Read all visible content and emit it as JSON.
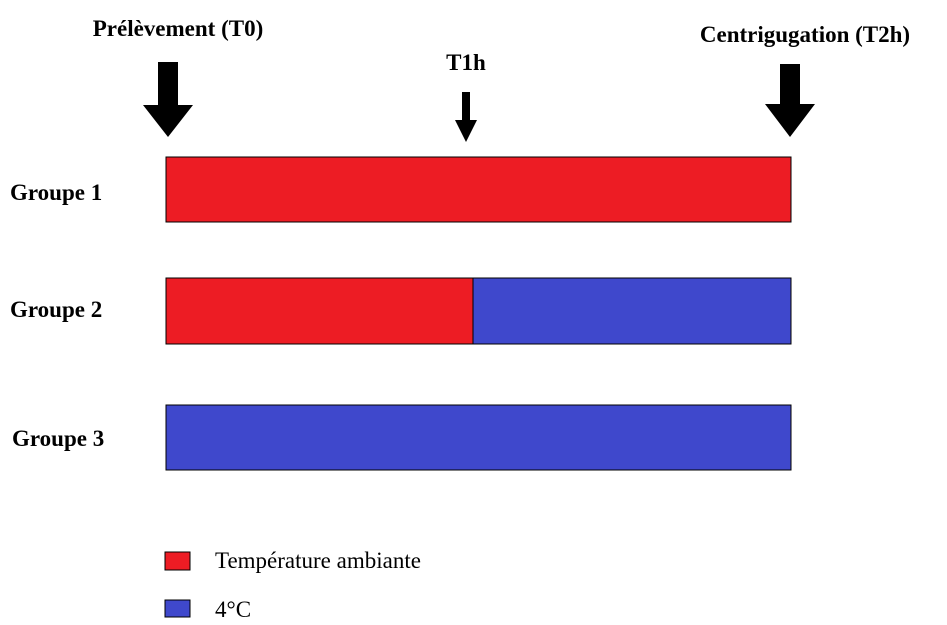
{
  "timeline": {
    "start": "Prélèvement (T0)",
    "middle": "T1h",
    "end": "Centrigugation (T2h)"
  },
  "groups": [
    "Groupe 1",
    "Groupe 2",
    "Groupe 3"
  ],
  "legend": [
    "Température ambiante",
    "4°C"
  ]
}
